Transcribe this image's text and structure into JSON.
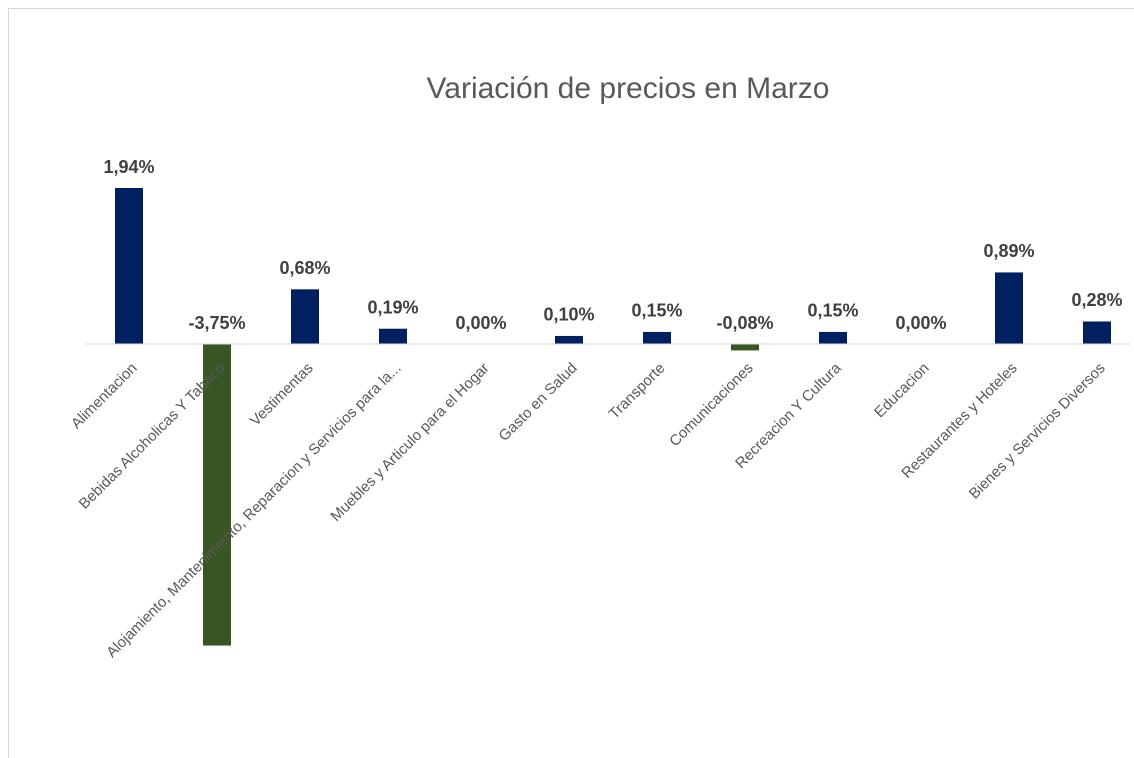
{
  "chart_data": {
    "type": "bar",
    "title": "Variación de precios en Marzo",
    "categories": [
      "Alimentacion",
      "Bebidas Alcoholicas Y Tabaco",
      "Vestimentas",
      "Alojamiento, Mantenimiento, Reparacion y Servicios para la...",
      "Muebles y Articulo para el Hogar",
      "Gasto en Salud",
      "Transporte",
      "Comunicaciones",
      "Recreacion Y Cultura",
      "Educacion",
      "Restaurantes y Hoteles",
      "Bienes y Servicios Diversos"
    ],
    "values": [
      1.94,
      -3.75,
      0.68,
      0.19,
      0,
      0.1,
      0.15,
      -0.08,
      0.15,
      0,
      0.89,
      0.28
    ],
    "value_labels": [
      "1,94%",
      "-3,75%",
      "0,68%",
      "0,19%",
      "0,00%",
      "0,10%",
      "0,15%",
      "-0,08%",
      "0,15%",
      "0,00%",
      "0,89%",
      "0,28%"
    ],
    "color": "#002060",
    "negative_color": "#375623"
  }
}
